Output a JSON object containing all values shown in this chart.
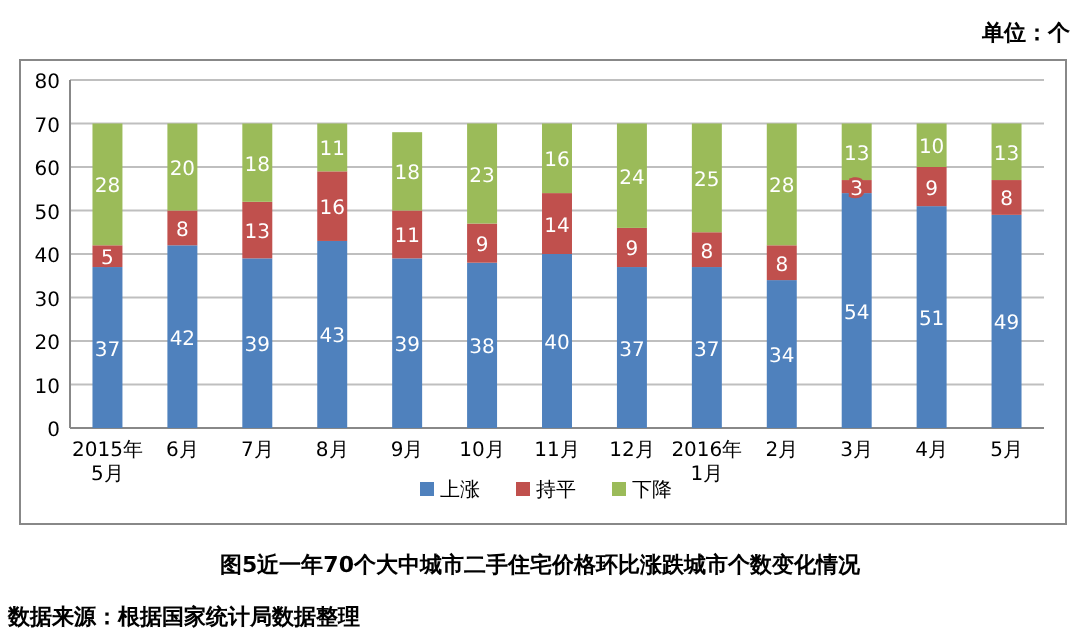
{
  "chart_data": {
    "type": "bar",
    "stacked": true,
    "title": "图5近一年70个大中城市二手住宅价格环比涨跌城市个数变化情况",
    "categories": [
      "2015年\n5月",
      "6月",
      "7月",
      "8月",
      "9月",
      "10月",
      "11月",
      "12月",
      "2016年\n1月",
      "2月",
      "3月",
      "4月",
      "5月"
    ],
    "series": [
      {
        "name": "上涨",
        "color": "#4f81bd",
        "values": [
          37,
          42,
          39,
          43,
          39,
          38,
          40,
          37,
          37,
          34,
          54,
          51,
          49
        ]
      },
      {
        "name": "持平",
        "color": "#c0504d",
        "values": [
          5,
          8,
          13,
          16,
          11,
          9,
          14,
          9,
          8,
          8,
          3,
          9,
          8
        ]
      },
      {
        "name": "下降",
        "color": "#9bbb59",
        "values": [
          28,
          20,
          18,
          11,
          18,
          23,
          16,
          24,
          25,
          28,
          13,
          10,
          13
        ]
      }
    ],
    "ylim": [
      0,
      80
    ],
    "yticks": [
      0,
      10,
      20,
      30,
      40,
      50,
      60,
      70,
      80
    ],
    "grid": "y",
    "legend": "bottom",
    "data_labels": true,
    "annotations": [
      "单位：个",
      "数据来源：根据国家统计局数据整理"
    ]
  }
}
